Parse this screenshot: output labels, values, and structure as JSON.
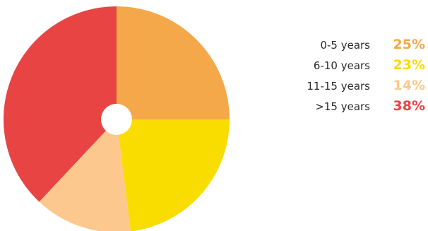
{
  "chart_data": {
    "type": "pie",
    "slices": [
      {
        "label": "0-5 years",
        "value": 25,
        "display": "25%",
        "color": "#F5A84A"
      },
      {
        "label": "6-10 years",
        "value": 23,
        "display": "23%",
        "color": "#F9DC00"
      },
      {
        "label": "11-15 years",
        "value": 14,
        "display": "14%",
        "color": "#FCC88E"
      },
      {
        "label": ">15 years",
        "value": 38,
        "display": "38%",
        "color": "#E84444"
      }
    ],
    "start_angle": "12 o'clock",
    "direction": "clockwise",
    "center_hole": true,
    "legend_position": "right"
  }
}
